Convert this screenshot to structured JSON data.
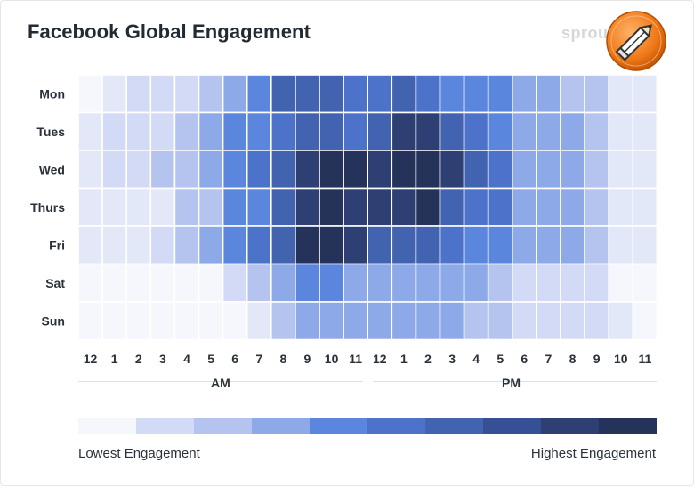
{
  "chart_data": {
    "type": "heatmap",
    "title": "Facebook Global Engagement",
    "brand": "sprout",
    "rows": [
      "Mon",
      "Tues",
      "Wed",
      "Thurs",
      "Fri",
      "Sat",
      "Sun"
    ],
    "columns": [
      "12",
      "1",
      "2",
      "3",
      "4",
      "5",
      "6",
      "7",
      "8",
      "9",
      "10",
      "11",
      "12",
      "1",
      "2",
      "3",
      "4",
      "5",
      "6",
      "7",
      "8",
      "9",
      "10",
      "11"
    ],
    "period_labels": [
      "AM",
      "PM"
    ],
    "levels_note": "0 = lowest engagement, 10 = highest engagement",
    "values": [
      [
        0,
        1,
        2,
        2,
        2,
        3,
        4,
        5,
        7,
        7,
        7,
        6,
        6,
        7,
        6,
        5,
        5,
        5,
        4,
        4,
        3,
        3,
        1,
        1
      ],
      [
        1,
        2,
        2,
        2,
        3,
        4,
        5,
        5,
        6,
        7,
        7,
        6,
        7,
        9,
        9,
        7,
        6,
        5,
        4,
        4,
        4,
        3,
        1,
        1
      ],
      [
        1,
        2,
        2,
        3,
        3,
        4,
        5,
        6,
        7,
        9,
        10,
        10,
        9,
        10,
        10,
        9,
        7,
        6,
        4,
        4,
        4,
        3,
        1,
        1
      ],
      [
        1,
        1,
        1,
        1,
        3,
        3,
        5,
        5,
        7,
        9,
        10,
        9,
        9,
        9,
        10,
        7,
        6,
        6,
        4,
        4,
        4,
        3,
        1,
        1
      ],
      [
        1,
        1,
        1,
        2,
        3,
        4,
        5,
        6,
        7,
        10,
        10,
        9,
        7,
        7,
        7,
        6,
        5,
        5,
        4,
        4,
        4,
        3,
        1,
        1
      ],
      [
        0,
        0,
        0,
        0,
        0,
        0,
        2,
        3,
        4,
        5,
        5,
        4,
        4,
        4,
        4,
        4,
        4,
        3,
        2,
        2,
        2,
        2,
        0,
        0
      ],
      [
        0,
        0,
        0,
        0,
        0,
        0,
        0,
        1,
        3,
        4,
        4,
        4,
        4,
        4,
        4,
        4,
        3,
        3,
        2,
        2,
        2,
        2,
        1,
        0
      ]
    ],
    "legend": {
      "low_label": "Lowest Engagement",
      "high_label": "Highest Engagement"
    }
  },
  "palette": [
    "#f5f7fd",
    "#e3e8f8",
    "#d2daf5",
    "#b4c4ef",
    "#8ea9e8",
    "#5b86dd",
    "#4d72c9",
    "#4263b0",
    "#374f95",
    "#2d3f73",
    "#25335a"
  ]
}
